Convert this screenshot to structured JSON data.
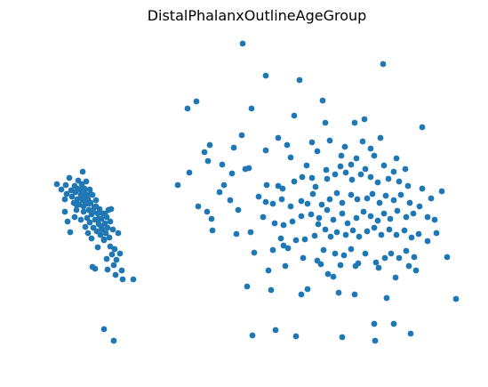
{
  "chart_data": {
    "type": "scatter",
    "title": "DistalPhalanxOutlineAgeGroup",
    "xlabel": "",
    "ylabel": "",
    "axes_visible": false,
    "grid": false,
    "marker_color": "#1f77b4",
    "points": [
      [
        273,
        49
      ],
      [
        431,
        72
      ],
      [
        299,
        85
      ],
      [
        337,
        90
      ],
      [
        221,
        114
      ],
      [
        211,
        122
      ],
      [
        363,
        113
      ],
      [
        283,
        122
      ],
      [
        331,
        130
      ],
      [
        366,
        138
      ],
      [
        399,
        138
      ],
      [
        410,
        134
      ],
      [
        475,
        143
      ],
      [
        272,
        152
      ],
      [
        236,
        163
      ],
      [
        230,
        171
      ],
      [
        263,
        166
      ],
      [
        313,
        155
      ],
      [
        351,
        160
      ],
      [
        323,
        163
      ],
      [
        371,
        158
      ],
      [
        388,
        165
      ],
      [
        408,
        159
      ],
      [
        428,
        155
      ],
      [
        417,
        167
      ],
      [
        299,
        169
      ],
      [
        327,
        177
      ],
      [
        357,
        170
      ],
      [
        384,
        175
      ],
      [
        401,
        178
      ],
      [
        421,
        175
      ],
      [
        446,
        178
      ],
      [
        234,
        181
      ],
      [
        250,
        185
      ],
      [
        276,
        190
      ],
      [
        280,
        189
      ],
      [
        345,
        186
      ],
      [
        367,
        191
      ],
      [
        383,
        187
      ],
      [
        395,
        185
      ],
      [
        411,
        190
      ],
      [
        432,
        186
      ],
      [
        443,
        193
      ],
      [
        456,
        190
      ],
      [
        200,
        208
      ],
      [
        213,
        194
      ],
      [
        252,
        208
      ],
      [
        261,
        195
      ],
      [
        300,
        208
      ],
      [
        313,
        209
      ],
      [
        318,
        212
      ],
      [
        331,
        204
      ],
      [
        340,
        199
      ],
      [
        351,
        200
      ],
      [
        355,
        210
      ],
      [
        368,
        201
      ],
      [
        377,
        196
      ],
      [
        389,
        194
      ],
      [
        396,
        202
      ],
      [
        406,
        196
      ],
      [
        417,
        199
      ],
      [
        425,
        205
      ],
      [
        437,
        201
      ],
      [
        449,
        204
      ],
      [
        459,
        209
      ],
      [
        475,
        212
      ],
      [
        497,
        215
      ],
      [
        223,
        232
      ],
      [
        233,
        238
      ],
      [
        247,
        216
      ],
      [
        259,
        225
      ],
      [
        268,
        236
      ],
      [
        291,
        221
      ],
      [
        299,
        227
      ],
      [
        307,
        229
      ],
      [
        317,
        224
      ],
      [
        327,
        232
      ],
      [
        339,
        226
      ],
      [
        346,
        229
      ],
      [
        352,
        218
      ],
      [
        362,
        230
      ],
      [
        371,
        224
      ],
      [
        379,
        217
      ],
      [
        385,
        228
      ],
      [
        395,
        219
      ],
      [
        402,
        224
      ],
      [
        413,
        223
      ],
      [
        419,
        218
      ],
      [
        427,
        228
      ],
      [
        434,
        220
      ],
      [
        443,
        225
      ],
      [
        451,
        219
      ],
      [
        461,
        228
      ],
      [
        472,
        232
      ],
      [
        485,
        223
      ],
      [
        238,
        246
      ],
      [
        239,
        259
      ],
      [
        266,
        263
      ],
      [
        282,
        261
      ],
      [
        296,
        244
      ],
      [
        309,
        251
      ],
      [
        319,
        253
      ],
      [
        329,
        249
      ],
      [
        339,
        243
      ],
      [
        350,
        241
      ],
      [
        359,
        245
      ],
      [
        368,
        236
      ],
      [
        375,
        247
      ],
      [
        385,
        240
      ],
      [
        391,
        251
      ],
      [
        401,
        245
      ],
      [
        409,
        238
      ],
      [
        417,
        243
      ],
      [
        425,
        248
      ],
      [
        432,
        240
      ],
      [
        439,
        246
      ],
      [
        447,
        237
      ],
      [
        457,
        244
      ],
      [
        465,
        240
      ],
      [
        481,
        244
      ],
      [
        489,
        247
      ],
      [
        316,
        268
      ],
      [
        324,
        279
      ],
      [
        333,
        270
      ],
      [
        343,
        269
      ],
      [
        354,
        265
      ],
      [
        358,
        252
      ],
      [
        366,
        258
      ],
      [
        372,
        266
      ],
      [
        379,
        261
      ],
      [
        389,
        264
      ],
      [
        397,
        259
      ],
      [
        404,
        266
      ],
      [
        413,
        260
      ],
      [
        421,
        256
      ],
      [
        429,
        264
      ],
      [
        438,
        258
      ],
      [
        446,
        264
      ],
      [
        455,
        259
      ],
      [
        463,
        267
      ],
      [
        471,
        263
      ],
      [
        481,
        271
      ],
      [
        286,
        284
      ],
      [
        307,
        281
      ],
      [
        319,
        276
      ],
      [
        341,
        290
      ],
      [
        357,
        293
      ],
      [
        364,
        281
      ],
      [
        377,
        285
      ],
      [
        387,
        287
      ],
      [
        395,
        280
      ],
      [
        403,
        296
      ],
      [
        411,
        285
      ],
      [
        423,
        295
      ],
      [
        433,
        290
      ],
      [
        440,
        285
      ],
      [
        449,
        290
      ],
      [
        457,
        282
      ],
      [
        466,
        289
      ],
      [
        491,
        262
      ],
      [
        503,
        289
      ],
      [
        321,
        299
      ],
      [
        361,
        297
      ],
      [
        383,
        298
      ],
      [
        400,
        299
      ],
      [
        426,
        301
      ],
      [
        460,
        299
      ],
      [
        468,
        304
      ],
      [
        302,
        304
      ],
      [
        278,
        322
      ],
      [
        305,
        326
      ],
      [
        339,
        331
      ],
      [
        346,
        325
      ],
      [
        369,
        308
      ],
      [
        375,
        311
      ],
      [
        381,
        329
      ],
      [
        399,
        331
      ],
      [
        435,
        335
      ],
      [
        445,
        312
      ],
      [
        513,
        336
      ],
      [
        284,
        377
      ],
      [
        310,
        371
      ],
      [
        333,
        378
      ],
      [
        385,
        379
      ],
      [
        421,
        364
      ],
      [
        422,
        383
      ],
      [
        443,
        364
      ],
      [
        462,
        375
      ],
      [
        64,
        207
      ],
      [
        69,
        213
      ],
      [
        74,
        208
      ],
      [
        73,
        224
      ],
      [
        73,
        238
      ],
      [
        75,
        218
      ],
      [
        78,
        200
      ],
      [
        80,
        214
      ],
      [
        81,
        221
      ],
      [
        83,
        228
      ],
      [
        84,
        209
      ],
      [
        85,
        216
      ],
      [
        86,
        236
      ],
      [
        87,
        224
      ],
      [
        88,
        203
      ],
      [
        89,
        230
      ],
      [
        90,
        213
      ],
      [
        91,
        219
      ],
      [
        92,
        207
      ],
      [
        93,
        193
      ],
      [
        93,
        225
      ],
      [
        94,
        238
      ],
      [
        95,
        214
      ],
      [
        96,
        229
      ],
      [
        97,
        219
      ],
      [
        98,
        245
      ],
      [
        99,
        224
      ],
      [
        100,
        236
      ],
      [
        101,
        213
      ],
      [
        102,
        228
      ],
      [
        103,
        241
      ],
      [
        104,
        219
      ],
      [
        105,
        256
      ],
      [
        106,
        233
      ],
      [
        107,
        247
      ],
      [
        108,
        225
      ],
      [
        109,
        260
      ],
      [
        110,
        240
      ],
      [
        111,
        252
      ],
      [
        112,
        235
      ],
      [
        113,
        264
      ],
      [
        114,
        246
      ],
      [
        115,
        258
      ],
      [
        116,
        240
      ],
      [
        117,
        270
      ],
      [
        118,
        251
      ],
      [
        119,
        262
      ],
      [
        120,
        244
      ],
      [
        121,
        256
      ],
      [
        122,
        236
      ],
      [
        123,
        267
      ],
      [
        124,
        249
      ],
      [
        125,
        235
      ],
      [
        126,
        286
      ],
      [
        127,
        258
      ],
      [
        128,
        298
      ],
      [
        129,
        280
      ],
      [
        130,
        309
      ],
      [
        131,
        292
      ],
      [
        133,
        262
      ],
      [
        135,
        285
      ],
      [
        137,
        304
      ],
      [
        104,
        300
      ],
      [
        107,
        302
      ],
      [
        124,
        277
      ],
      [
        120,
        291
      ],
      [
        150,
        314
      ],
      [
        138,
        314
      ],
      [
        79,
        261
      ],
      [
        76,
        249
      ],
      [
        84,
        244
      ],
      [
        91,
        247
      ],
      [
        96,
        255
      ],
      [
        99,
        262
      ],
      [
        103,
        268
      ],
      [
        110,
        278
      ],
      [
        117,
        269
      ],
      [
        121,
        303
      ],
      [
        117,
        370
      ],
      [
        128,
        383
      ],
      [
        96,
        222
      ],
      [
        100,
        229
      ],
      [
        102,
        218
      ],
      [
        105,
        238
      ],
      [
        97,
        204
      ],
      [
        87,
        212
      ],
      [
        92,
        221
      ],
      [
        95,
        212
      ],
      [
        108,
        232
      ],
      [
        111,
        246
      ],
      [
        114,
        255
      ],
      [
        118,
        240
      ],
      [
        101,
        250
      ],
      [
        86,
        230
      ],
      [
        94,
        232
      ]
    ]
  }
}
